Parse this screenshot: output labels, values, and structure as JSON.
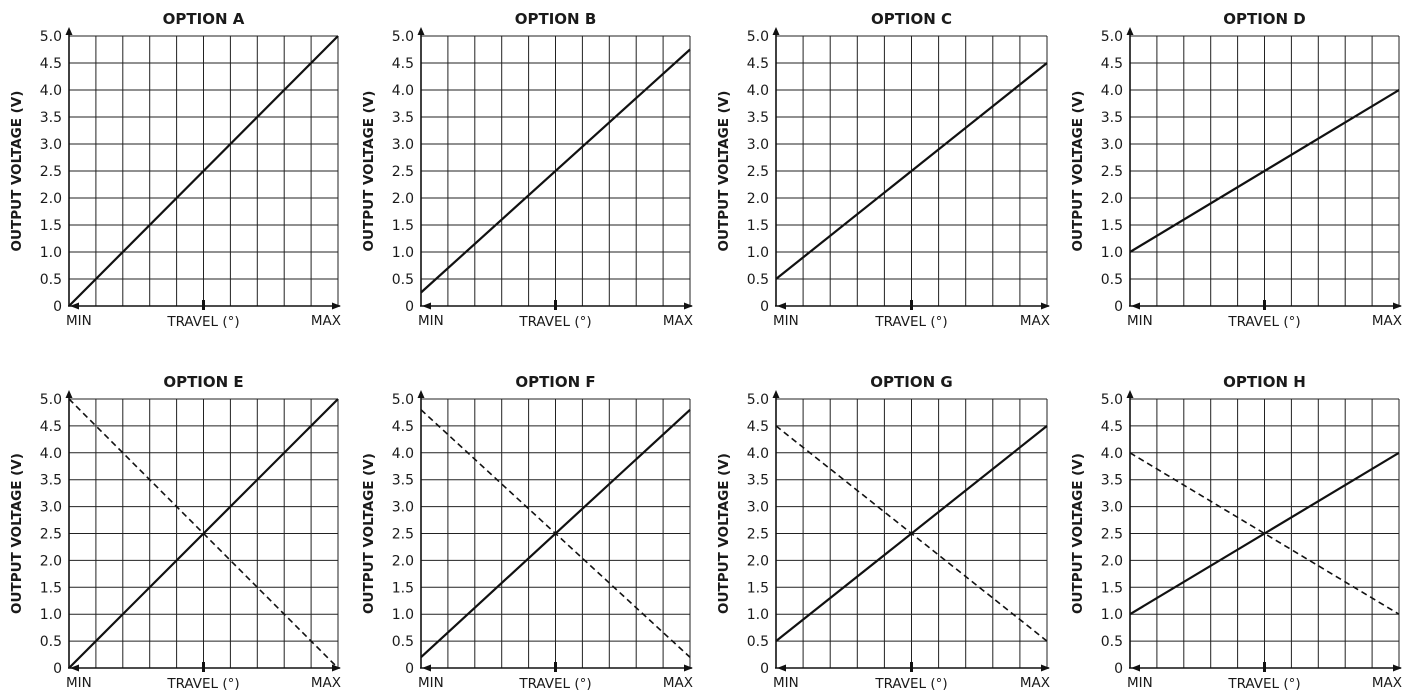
{
  "chart_data": [
    {
      "type": "line",
      "title": "OPTION A",
      "ylabel": "OUTPUT VOLTAGE (V)",
      "xlabel": "TRAVEL (°)",
      "x_ticks": [
        "MIN",
        "MAX"
      ],
      "y_ticks": [
        "0",
        "0.5",
        "1.0",
        "1.5",
        "2.0",
        "2.5",
        "3.0",
        "3.5",
        "4.0",
        "4.5",
        "5.0"
      ],
      "ylim": [
        0,
        5
      ],
      "grid": true,
      "series": [
        {
          "style": "solid",
          "values": [
            0,
            5
          ]
        }
      ]
    },
    {
      "type": "line",
      "title": "OPTION B",
      "ylabel": "OUTPUT VOLTAGE (V)",
      "xlabel": "TRAVEL (°)",
      "x_ticks": [
        "MIN",
        "MAX"
      ],
      "y_ticks": [
        "0",
        "0.5",
        "1.0",
        "1.5",
        "2.0",
        "2.5",
        "3.0",
        "3.5",
        "4.0",
        "4.5",
        "5.0"
      ],
      "ylim": [
        0,
        5
      ],
      "grid": true,
      "series": [
        {
          "style": "solid",
          "values": [
            0.25,
            4.75
          ]
        }
      ]
    },
    {
      "type": "line",
      "title": "OPTION C",
      "ylabel": "OUTPUT VOLTAGE (V)",
      "xlabel": "TRAVEL (°)",
      "x_ticks": [
        "MIN",
        "MAX"
      ],
      "y_ticks": [
        "0",
        "0.5",
        "1.0",
        "1.5",
        "2.0",
        "2.5",
        "3.0",
        "3.5",
        "4.0",
        "4.5",
        "5.0"
      ],
      "ylim": [
        0,
        5
      ],
      "grid": true,
      "series": [
        {
          "style": "solid",
          "values": [
            0.5,
            4.5
          ]
        }
      ]
    },
    {
      "type": "line",
      "title": "OPTION D",
      "ylabel": "OUTPUT VOLTAGE (V)",
      "xlabel": "TRAVEL (°)",
      "x_ticks": [
        "MIN",
        "MAX"
      ],
      "y_ticks": [
        "0",
        "0.5",
        "1.0",
        "1.5",
        "2.0",
        "2.5",
        "3.0",
        "3.5",
        "4.0",
        "4.5",
        "5.0"
      ],
      "ylim": [
        0,
        5
      ],
      "grid": true,
      "series": [
        {
          "style": "solid",
          "values": [
            1.0,
            4.0
          ]
        }
      ]
    },
    {
      "type": "line",
      "title": "OPTION E",
      "ylabel": "OUTPUT VOLTAGE (V)",
      "xlabel": "TRAVEL (°)",
      "x_ticks": [
        "MIN",
        "MAX"
      ],
      "y_ticks": [
        "0",
        "0.5",
        "1.0",
        "1.5",
        "2.0",
        "2.5",
        "3.0",
        "3.5",
        "4.0",
        "4.5",
        "5.0"
      ],
      "ylim": [
        0,
        5
      ],
      "grid": true,
      "series": [
        {
          "style": "solid",
          "values": [
            0,
            5
          ]
        },
        {
          "style": "dashed",
          "values": [
            5,
            0
          ]
        }
      ]
    },
    {
      "type": "line",
      "title": "OPTION F",
      "ylabel": "OUTPUT VOLTAGE (V)",
      "xlabel": "TRAVEL (°)",
      "x_ticks": [
        "MIN",
        "MAX"
      ],
      "y_ticks": [
        "0",
        "0.5",
        "1.0",
        "1.5",
        "2.0",
        "2.5",
        "3.0",
        "3.5",
        "4.0",
        "4.5",
        "5.0"
      ],
      "ylim": [
        0,
        5
      ],
      "grid": true,
      "series": [
        {
          "style": "solid",
          "values": [
            0.2,
            4.8
          ]
        },
        {
          "style": "dashed",
          "values": [
            4.8,
            0.2
          ]
        }
      ]
    },
    {
      "type": "line",
      "title": "OPTION G",
      "ylabel": "OUTPUT VOLTAGE (V)",
      "xlabel": "TRAVEL (°)",
      "x_ticks": [
        "MIN",
        "MAX"
      ],
      "y_ticks": [
        "0",
        "0.5",
        "1.0",
        "1.5",
        "2.0",
        "2.5",
        "3.0",
        "3.5",
        "4.0",
        "4.5",
        "5.0"
      ],
      "ylim": [
        0,
        5
      ],
      "grid": true,
      "series": [
        {
          "style": "solid",
          "values": [
            0.5,
            4.5
          ]
        },
        {
          "style": "dashed",
          "values": [
            4.5,
            0.5
          ]
        }
      ]
    },
    {
      "type": "line",
      "title": "OPTION H",
      "ylabel": "OUTPUT VOLTAGE (V)",
      "xlabel": "TRAVEL (°)",
      "x_ticks": [
        "MIN",
        "MAX"
      ],
      "y_ticks": [
        "0",
        "0.5",
        "1.0",
        "1.5",
        "2.0",
        "2.5",
        "3.0",
        "3.5",
        "4.0",
        "4.5",
        "5.0"
      ],
      "ylim": [
        0,
        5
      ],
      "grid": true,
      "series": [
        {
          "style": "solid",
          "values": [
            1.0,
            4.0
          ]
        },
        {
          "style": "dashed",
          "values": [
            4.0,
            1.0
          ]
        }
      ]
    }
  ]
}
